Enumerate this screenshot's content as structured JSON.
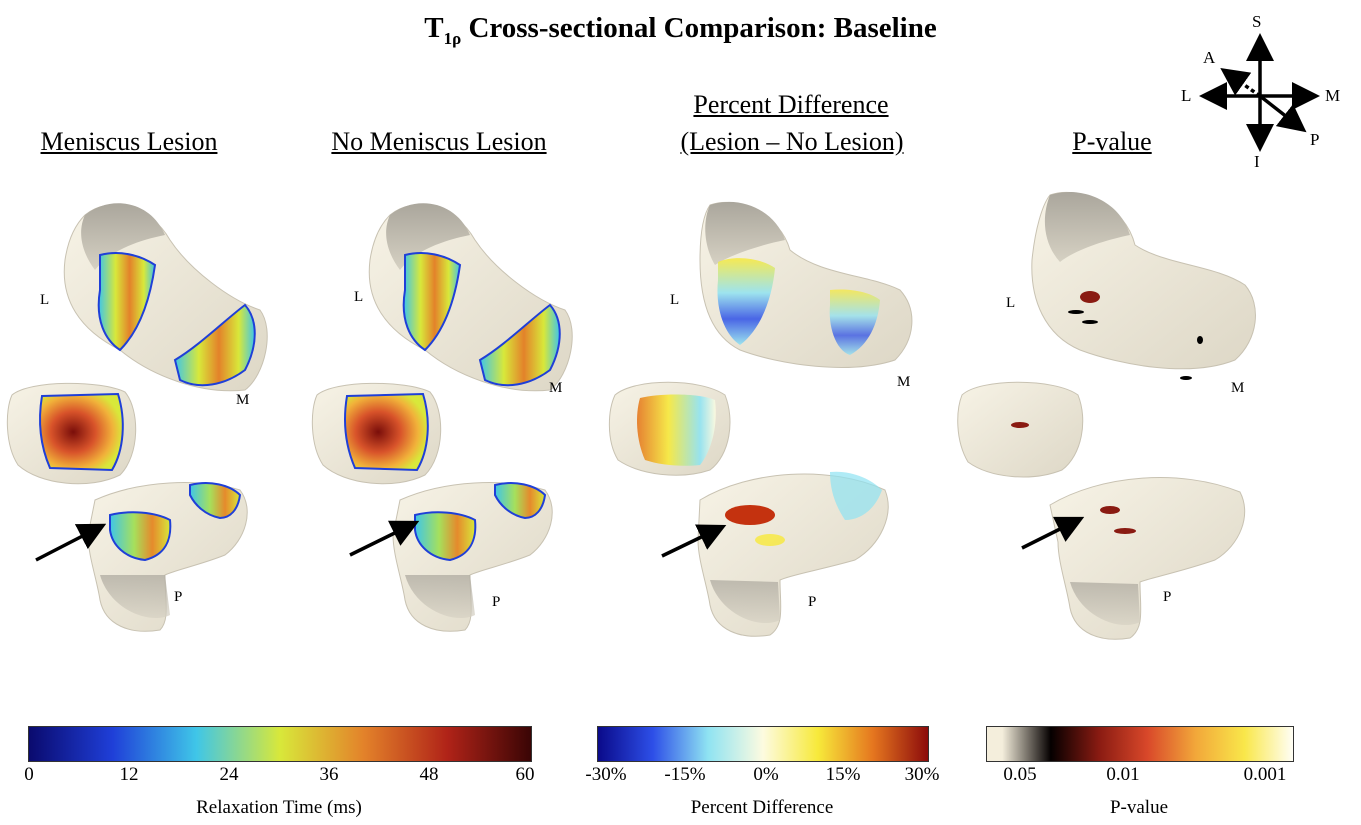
{
  "figure": {
    "title_main": "T",
    "title_sub": "1ρ",
    "title_rest": " Cross-sectional Comparison: Baseline"
  },
  "columns": [
    {
      "label": "Meniscus Lesion"
    },
    {
      "label": "No Meniscus Lesion"
    },
    {
      "label_line1": "Percent Difference",
      "label_line2": "(Lesion – No Lesion)"
    },
    {
      "label": "P-value"
    }
  ],
  "orientation": {
    "superior": "S",
    "inferior": "I",
    "lateral": "L",
    "medial": "M",
    "anterior": "A",
    "posterior": "P"
  },
  "anatomy_labels": {
    "lateral": "L",
    "medial": "M",
    "posterior": "P"
  },
  "colorbars": [
    {
      "title": "Relaxation Time (ms)",
      "ticks": [
        "0",
        "12",
        "24",
        "36",
        "48",
        "60"
      ],
      "colors": [
        "#0a0a6e",
        "#1f3fd8",
        "#3fc6e8",
        "#d8e83a",
        "#e3822a",
        "#b02318",
        "#3a0505"
      ]
    },
    {
      "title": "Percent Difference",
      "ticks": [
        "-30%",
        "-15%",
        "0%",
        "15%",
        "30%"
      ],
      "colors": [
        "#0a0a8a",
        "#2d4fe8",
        "#8fe3f2",
        "#fdfbe0",
        "#f7e93a",
        "#e5761f",
        "#8c0b0b"
      ]
    },
    {
      "title": "P-value",
      "ticks": [
        "0.05",
        "0.01",
        "0.001"
      ],
      "colors": [
        "#f4eedc",
        "#050000",
        "#8a1b12",
        "#d9482a",
        "#f2a83a",
        "#f9e74a",
        "#fffef5"
      ]
    }
  ]
}
